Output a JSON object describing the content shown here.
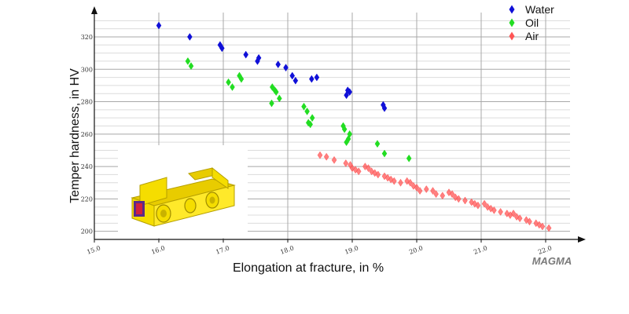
{
  "chart_data": {
    "type": "scatter",
    "xlabel": "Elongation at fracture, in %",
    "ylabel": "Temper hardness, in HV",
    "xlim": [
      15.0,
      22.5
    ],
    "ylim": [
      195,
      335
    ],
    "x_ticks": [
      15.0,
      16.0,
      17.0,
      18.0,
      19.0,
      20.0,
      21.0,
      22.0
    ],
    "x_tick_labels": [
      "15.0",
      "16.0",
      "17.0",
      "18.0",
      "19.0",
      "20.0",
      "21.0",
      "22.0"
    ],
    "y_ticks": [
      200,
      220,
      240,
      260,
      280,
      300,
      320
    ],
    "y_tick_labels": [
      "200",
      "220",
      "240",
      "260",
      "280",
      "300",
      "320"
    ],
    "grid": true,
    "legend_position": "top-right",
    "series": [
      {
        "name": "Water",
        "color": "#1010d8",
        "points": [
          [
            16.0,
            327
          ],
          [
            16.48,
            320
          ],
          [
            16.95,
            315
          ],
          [
            16.98,
            313
          ],
          [
            17.35,
            309
          ],
          [
            17.55,
            307
          ],
          [
            17.53,
            305
          ],
          [
            17.85,
            303
          ],
          [
            17.97,
            301
          ],
          [
            18.07,
            296
          ],
          [
            18.12,
            293
          ],
          [
            18.37,
            294
          ],
          [
            18.45,
            295
          ],
          [
            18.93,
            287
          ],
          [
            18.91,
            284
          ],
          [
            18.96,
            286
          ],
          [
            19.48,
            278
          ],
          [
            19.5,
            276
          ]
        ]
      },
      {
        "name": "Oil",
        "color": "#22dd22",
        "points": [
          [
            16.45,
            305
          ],
          [
            16.5,
            302
          ],
          [
            17.08,
            292
          ],
          [
            17.14,
            289
          ],
          [
            17.25,
            296
          ],
          [
            17.28,
            294
          ],
          [
            17.75,
            279
          ],
          [
            17.82,
            286
          ],
          [
            17.76,
            289
          ],
          [
            17.8,
            287
          ],
          [
            17.87,
            282
          ],
          [
            18.25,
            277
          ],
          [
            18.3,
            274
          ],
          [
            18.38,
            270
          ],
          [
            18.32,
            267
          ],
          [
            18.35,
            266
          ],
          [
            18.86,
            265
          ],
          [
            18.88,
            263
          ],
          [
            18.96,
            260
          ],
          [
            18.94,
            257
          ],
          [
            18.91,
            255
          ],
          [
            19.39,
            254
          ],
          [
            19.5,
            248
          ],
          [
            19.88,
            245
          ]
        ]
      },
      {
        "name": "Air",
        "color": "#ff5555",
        "points": [
          [
            18.5,
            247
          ],
          [
            18.6,
            246
          ],
          [
            18.72,
            244
          ],
          [
            18.9,
            242
          ],
          [
            18.97,
            241
          ],
          [
            19.0,
            239
          ],
          [
            19.05,
            238
          ],
          [
            19.1,
            237
          ],
          [
            19.2,
            240
          ],
          [
            19.25,
            239
          ],
          [
            19.3,
            237
          ],
          [
            19.35,
            236
          ],
          [
            19.4,
            235
          ],
          [
            19.5,
            234
          ],
          [
            19.55,
            233
          ],
          [
            19.6,
            232
          ],
          [
            19.65,
            231
          ],
          [
            19.75,
            230
          ],
          [
            19.85,
            231
          ],
          [
            19.9,
            230
          ],
          [
            19.95,
            228
          ],
          [
            20.0,
            227
          ],
          [
            20.05,
            225
          ],
          [
            20.15,
            226
          ],
          [
            20.25,
            225
          ],
          [
            20.3,
            223
          ],
          [
            20.4,
            222
          ],
          [
            20.5,
            224
          ],
          [
            20.55,
            223
          ],
          [
            20.6,
            221
          ],
          [
            20.65,
            220
          ],
          [
            20.75,
            219
          ],
          [
            20.85,
            218
          ],
          [
            20.9,
            217
          ],
          [
            20.95,
            216
          ],
          [
            21.05,
            217
          ],
          [
            21.1,
            215
          ],
          [
            21.15,
            214
          ],
          [
            21.2,
            213
          ],
          [
            21.3,
            212
          ],
          [
            21.4,
            211
          ],
          [
            21.45,
            210
          ],
          [
            21.5,
            211
          ],
          [
            21.55,
            209
          ],
          [
            21.6,
            208
          ],
          [
            21.7,
            207
          ],
          [
            21.75,
            206
          ],
          [
            21.85,
            205
          ],
          [
            21.9,
            204
          ],
          [
            21.95,
            203
          ],
          [
            22.05,
            202
          ]
        ]
      }
    ]
  },
  "logo": "MAGMA",
  "colors": {
    "axis": "#111111",
    "grid_major": "#a8a8a8",
    "grid_minor": "#dcdcdc",
    "part_body": "#f5dd00",
    "part_edge": "#b59f00",
    "part_hot": "#5a2a8a"
  }
}
